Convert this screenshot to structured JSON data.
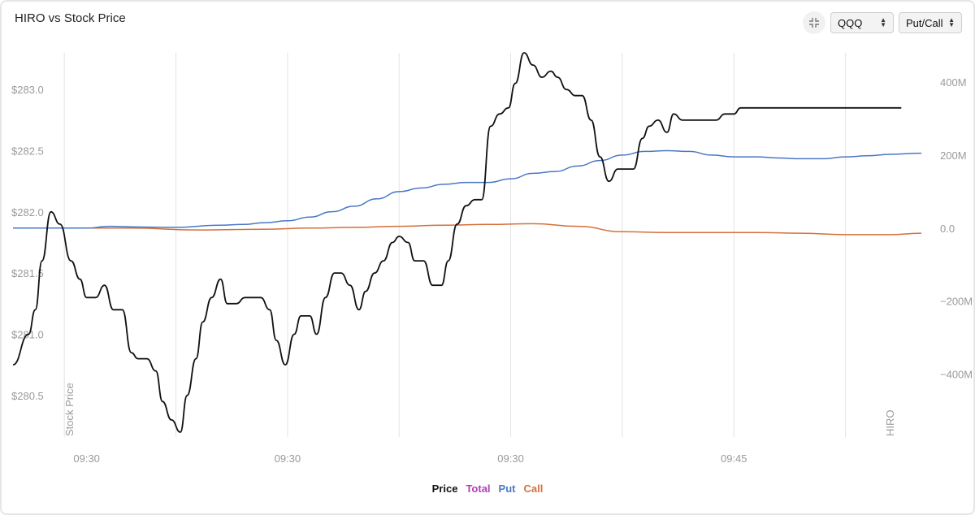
{
  "header": {
    "title": "HIRO vs Stock Price",
    "symbol_select": "QQQ",
    "mode_select": "Put/Call"
  },
  "colors": {
    "price": "#111111",
    "total": "#b03fb8",
    "put": "#4a78c5",
    "call": "#d4703a",
    "grid": "#e3e3e3",
    "axis_text": "#9a9a9a"
  },
  "icons": {
    "collapse": "collapse-icon",
    "select_caret": "chevron-updown-icon"
  },
  "chart_data": {
    "type": "line",
    "title": "HIRO vs Stock Price",
    "left_axis": {
      "label": "Stock Price",
      "ticks": [
        "$283.0",
        "$282.5",
        "$282.0",
        "$281.5",
        "$281.0",
        "$280.5"
      ],
      "tick_values": [
        283.0,
        282.5,
        282.0,
        281.5,
        281.0,
        280.5
      ],
      "range": [
        280.16,
        283.3
      ]
    },
    "right_axis": {
      "label": "HIRO",
      "ticks": [
        "400M",
        "200M",
        "0.0",
        "−200M",
        "−400M"
      ],
      "tick_values": [
        400,
        200,
        0,
        -200,
        -400
      ],
      "range": [
        -572,
        480
      ]
    },
    "x_axis": {
      "ticks": [
        "09:30",
        "09:30",
        "09:30",
        "09:45"
      ],
      "tick_positions": [
        0.1,
        1.0,
        2.0,
        3.0
      ],
      "range": [
        -0.23,
        3.84
      ]
    },
    "grid": true,
    "legend": {
      "position": "bottom",
      "entries": [
        "Price",
        "Total",
        "Put",
        "Call"
      ]
    },
    "series": [
      {
        "name": "Price",
        "axis": "left",
        "x": [
          -0.23,
          -0.16,
          -0.13,
          -0.1,
          -0.06,
          -0.02,
          0.03,
          0.07,
          0.1,
          0.14,
          0.18,
          0.22,
          0.26,
          0.3,
          0.33,
          0.37,
          0.41,
          0.44,
          0.48,
          0.52,
          0.55,
          0.59,
          0.62,
          0.66,
          0.7,
          0.73,
          0.77,
          0.81,
          0.85,
          0.88,
          0.92,
          0.95,
          0.99,
          1.03,
          1.06,
          1.1,
          1.13,
          1.17,
          1.21,
          1.24,
          1.28,
          1.32,
          1.35,
          1.39,
          1.43,
          1.47,
          1.5,
          1.54,
          1.57,
          1.61,
          1.65,
          1.69,
          1.72,
          1.76,
          1.8,
          1.84,
          1.87,
          1.91,
          1.95,
          1.99,
          2.02,
          2.06,
          2.1,
          2.14,
          2.18,
          2.21,
          2.25,
          2.29,
          2.32,
          2.36,
          2.4,
          2.44,
          2.48,
          2.51,
          2.55,
          2.59,
          2.62,
          2.66,
          2.7,
          2.73,
          2.77,
          2.81,
          2.85,
          2.88,
          2.92,
          2.96,
          3.0,
          3.03,
          3.07,
          3.11,
          3.14,
          3.18,
          3.22,
          3.26,
          3.3,
          3.33,
          3.37,
          3.41,
          3.45,
          3.48,
          3.52,
          3.56,
          3.6,
          3.63,
          3.67,
          3.71,
          3.75
        ],
        "y": [
          280.75,
          281.0,
          281.2,
          281.6,
          282.0,
          281.9,
          281.6,
          281.45,
          281.3,
          281.3,
          281.4,
          281.2,
          281.2,
          280.85,
          280.8,
          280.8,
          280.7,
          280.45,
          280.3,
          280.2,
          280.5,
          280.8,
          281.1,
          281.3,
          281.45,
          281.25,
          281.25,
          281.3,
          281.3,
          281.3,
          281.2,
          280.95,
          280.75,
          281.0,
          281.15,
          281.15,
          281.0,
          281.3,
          281.5,
          281.5,
          281.4,
          281.2,
          281.35,
          281.5,
          281.6,
          281.75,
          281.8,
          281.75,
          281.6,
          281.6,
          281.4,
          281.4,
          281.6,
          281.9,
          282.05,
          282.1,
          282.1,
          282.7,
          282.8,
          282.85,
          283.05,
          283.3,
          283.2,
          283.1,
          283.15,
          283.1,
          283.0,
          282.95,
          282.95,
          282.75,
          282.45,
          282.25,
          282.35,
          282.35,
          282.35,
          282.6,
          282.7,
          282.75,
          282.65,
          282.8,
          282.75,
          282.75,
          282.75,
          282.75,
          282.75,
          282.8,
          282.8,
          282.85,
          282.85,
          282.85,
          282.85,
          282.85,
          282.85,
          282.85,
          282.85,
          282.85,
          282.85,
          282.85,
          282.85,
          282.85,
          282.85,
          282.85,
          282.85,
          282.85,
          282.85,
          282.85,
          282.85
        ]
      },
      {
        "name": "Put",
        "axis": "right",
        "x": [
          -0.23,
          0.1,
          0.2,
          0.35,
          0.5,
          0.7,
          0.8,
          0.9,
          1.0,
          1.1,
          1.2,
          1.3,
          1.4,
          1.5,
          1.6,
          1.7,
          1.8,
          1.9,
          2.0,
          2.1,
          2.2,
          2.3,
          2.4,
          2.5,
          2.6,
          2.7,
          2.8,
          2.9,
          3.0,
          3.1,
          3.2,
          3.3,
          3.4,
          3.5,
          3.6,
          3.7,
          3.84
        ],
        "y": [
          0,
          0,
          5,
          3,
          2,
          8,
          10,
          15,
          20,
          30,
          45,
          60,
          80,
          100,
          110,
          120,
          125,
          125,
          135,
          150,
          155,
          170,
          185,
          200,
          210,
          212,
          210,
          200,
          195,
          195,
          192,
          190,
          190,
          195,
          198,
          202,
          205
        ]
      },
      {
        "name": "Call",
        "axis": "right",
        "x": [
          -0.23,
          0.3,
          0.6,
          0.9,
          1.1,
          1.3,
          1.5,
          1.7,
          1.9,
          2.1,
          2.3,
          2.5,
          2.7,
          2.9,
          3.1,
          3.3,
          3.5,
          3.7,
          3.84
        ],
        "y": [
          0,
          0,
          -5,
          -3,
          0,
          2,
          5,
          8,
          10,
          12,
          5,
          -10,
          -12,
          -12,
          -12,
          -14,
          -18,
          -18,
          -14
        ]
      }
    ]
  },
  "legend": {
    "price": "Price",
    "total": "Total",
    "put": "Put",
    "call": "Call"
  }
}
